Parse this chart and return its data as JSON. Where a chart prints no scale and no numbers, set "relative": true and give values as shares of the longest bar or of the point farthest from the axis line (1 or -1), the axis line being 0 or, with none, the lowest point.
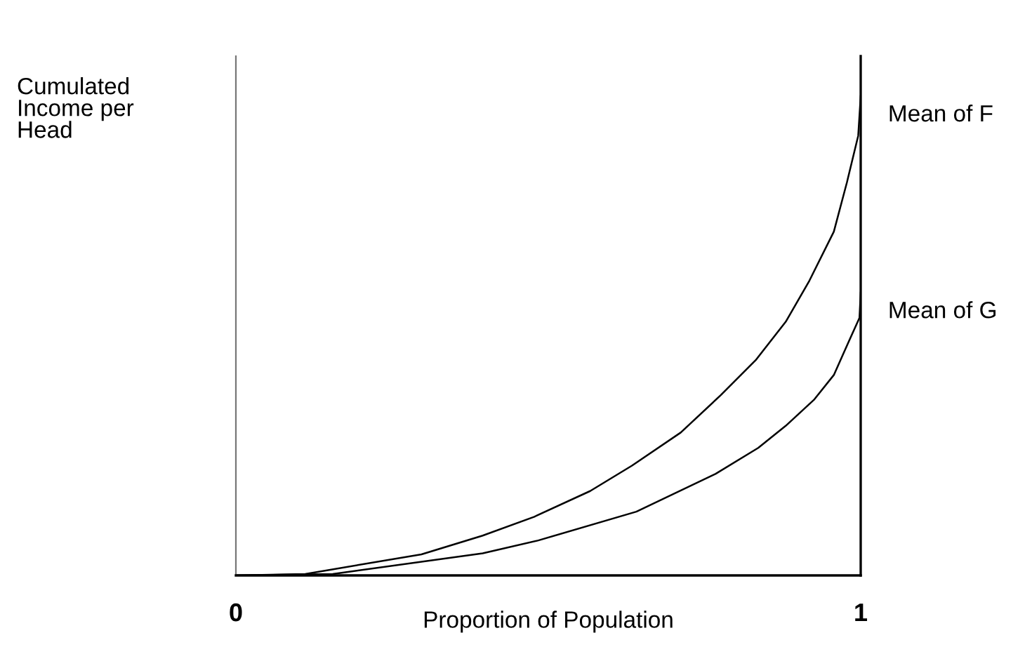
{
  "chart_data": {
    "type": "line",
    "relative": true,
    "xlabel": "Proportion of Population",
    "ylabel": "Cumulated\nIncome per\nHead",
    "xlim": [
      0,
      1
    ],
    "xticks": [
      0,
      1
    ],
    "grid": false,
    "legend": false,
    "marker": "none",
    "line_style": "solid",
    "series": [
      {
        "color": "#000000",
        "x": [
          0,
          0.111,
          0.297,
          0.395,
          0.477,
          0.567,
          0.634,
          0.712,
          0.776,
          0.832,
          0.88,
          0.918,
          0.957,
          0.978,
          0.996,
          1.0
        ],
        "values": [
          0,
          0.003,
          0.044,
          0.083,
          0.122,
          0.176,
          0.229,
          0.298,
          0.376,
          0.449,
          0.529,
          0.615,
          0.717,
          0.82,
          0.917,
          1.0
        ]
      },
      {
        "color": "#000000",
        "x": [
          0,
          0.155,
          0.395,
          0.484,
          0.641,
          0.768,
          0.836,
          0.88,
          0.925,
          0.957,
          0.981,
          0.998,
          1.0
        ],
        "values": [
          0,
          0.003,
          0.046,
          0.073,
          0.133,
          0.212,
          0.266,
          0.312,
          0.366,
          0.418,
          0.488,
          0.537,
          0.59
        ]
      }
    ],
    "annotations": [
      {
        "text": "Mean of F",
        "x": 1.0,
        "y": 1.0
      },
      {
        "text": "Mean of G",
        "x": 1.0,
        "y": 0.59
      }
    ]
  }
}
